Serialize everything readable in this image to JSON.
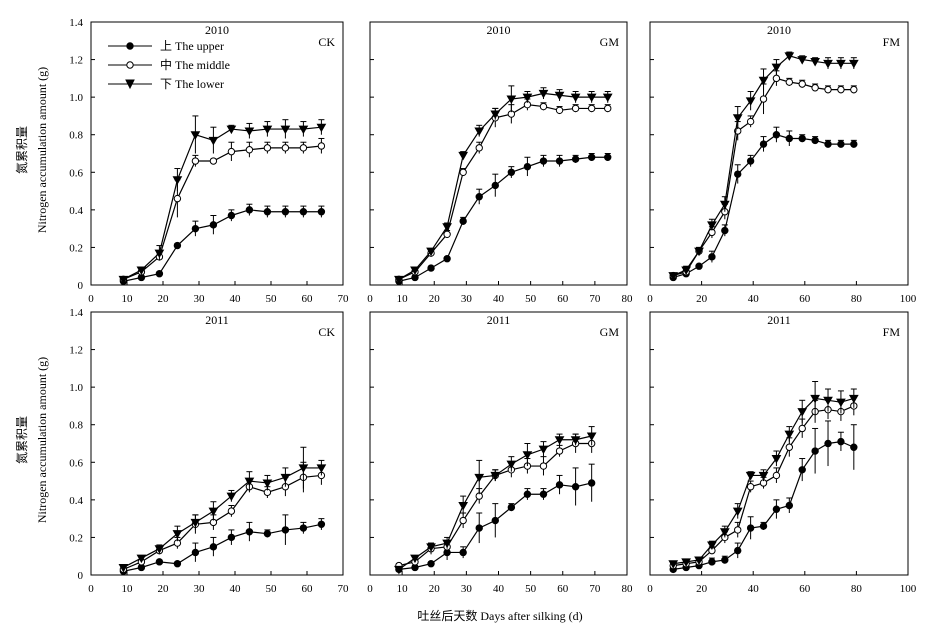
{
  "figure": {
    "xlabel": "吐丝后天数 Days after silking (d)",
    "ylabel_cn": "氮累积量",
    "ylabel_en": "Nitrogen accumulation amount (g)"
  },
  "legend": [
    {
      "label": "上 The upper",
      "marker": "filled-circle"
    },
    {
      "label": "中 The middle",
      "marker": "open-circle"
    },
    {
      "label": "下 The lower",
      "marker": "filled-triangle-down"
    }
  ],
  "chart_data": [
    {
      "type": "line",
      "year": "2010",
      "treatment": "CK",
      "xlim": [
        0,
        70
      ],
      "ylim": [
        0,
        1.4
      ],
      "xticks": [
        "0",
        "10",
        "20",
        "30",
        "40",
        "50",
        "60",
        "70"
      ],
      "yticks": [
        "0",
        "0.2",
        "0.4",
        "0.6",
        "0.8",
        "1.0",
        "1.2",
        "1.4"
      ],
      "x": [
        9,
        14,
        19,
        24,
        29,
        34,
        39,
        44,
        49,
        54,
        59,
        64
      ],
      "series": [
        {
          "name": "上 The upper",
          "values": [
            0.02,
            0.04,
            0.06,
            0.21,
            0.3,
            0.32,
            0.37,
            0.4,
            0.39,
            0.39,
            0.39,
            0.39
          ],
          "errors": [
            0.01,
            0.01,
            0.01,
            0.01,
            0.04,
            0.05,
            0.03,
            0.03,
            0.03,
            0.03,
            0.03,
            0.03
          ]
        },
        {
          "name": "中 The middle",
          "values": [
            0.03,
            0.07,
            0.15,
            0.46,
            0.66,
            0.66,
            0.71,
            0.72,
            0.73,
            0.73,
            0.73,
            0.74
          ],
          "errors": [
            0.01,
            0.01,
            0.02,
            0.1,
            0.03,
            0.01,
            0.05,
            0.04,
            0.03,
            0.03,
            0.03,
            0.04
          ]
        },
        {
          "name": "下 The lower",
          "values": [
            0.03,
            0.08,
            0.17,
            0.56,
            0.8,
            0.77,
            0.83,
            0.82,
            0.83,
            0.83,
            0.83,
            0.84
          ],
          "errors": [
            0.01,
            0.01,
            0.04,
            0.06,
            0.1,
            0.07,
            0.02,
            0.04,
            0.04,
            0.05,
            0.04,
            0.04
          ]
        }
      ]
    },
    {
      "type": "line",
      "year": "2010",
      "treatment": "GM",
      "xlim": [
        0,
        80
      ],
      "ylim": [
        0,
        1.4
      ],
      "xticks": [
        "0",
        "10",
        "20",
        "30",
        "40",
        "50",
        "60",
        "70",
        "80"
      ],
      "yticks": [],
      "x": [
        9,
        14,
        19,
        24,
        29,
        34,
        39,
        44,
        49,
        54,
        59,
        64,
        69,
        74
      ],
      "series": [
        {
          "name": "上 The upper",
          "values": [
            0.02,
            0.04,
            0.09,
            0.14,
            0.34,
            0.47,
            0.53,
            0.6,
            0.63,
            0.66,
            0.66,
            0.67,
            0.68,
            0.68
          ],
          "errors": [
            0.01,
            0.01,
            0.01,
            0.01,
            0.02,
            0.04,
            0.06,
            0.03,
            0.05,
            0.03,
            0.03,
            0.02,
            0.02,
            0.02
          ]
        },
        {
          "name": "中 The middle",
          "values": [
            0.03,
            0.07,
            0.17,
            0.27,
            0.6,
            0.73,
            0.89,
            0.91,
            0.96,
            0.95,
            0.93,
            0.94,
            0.94,
            0.94
          ],
          "errors": [
            0.01,
            0.01,
            0.02,
            0.02,
            0.02,
            0.03,
            0.05,
            0.05,
            0.03,
            0.02,
            0.02,
            0.02,
            0.02,
            0.02
          ]
        },
        {
          "name": "下 The lower",
          "values": [
            0.03,
            0.08,
            0.18,
            0.31,
            0.69,
            0.82,
            0.91,
            0.99,
            1.0,
            1.02,
            1.01,
            1.0,
            1.0,
            1.0
          ],
          "errors": [
            0.01,
            0.01,
            0.01,
            0.02,
            0.02,
            0.03,
            0.03,
            0.07,
            0.03,
            0.03,
            0.03,
            0.03,
            0.03,
            0.03
          ]
        }
      ]
    },
    {
      "type": "line",
      "year": "2010",
      "treatment": "FM",
      "xlim": [
        0,
        100
      ],
      "ylim": [
        0,
        1.4
      ],
      "xticks": [
        "0",
        "20",
        "40",
        "60",
        "80",
        "100"
      ],
      "yticks": [],
      "x": [
        9,
        14,
        19,
        24,
        29,
        34,
        39,
        44,
        49,
        54,
        59,
        64,
        69,
        74,
        79
      ],
      "series": [
        {
          "name": "上 The upper",
          "values": [
            0.04,
            0.06,
            0.1,
            0.15,
            0.29,
            0.59,
            0.66,
            0.75,
            0.8,
            0.78,
            0.78,
            0.77,
            0.75,
            0.75,
            0.75
          ],
          "errors": [
            0.01,
            0.01,
            0.01,
            0.03,
            0.03,
            0.05,
            0.03,
            0.04,
            0.04,
            0.04,
            0.02,
            0.02,
            0.02,
            0.02,
            0.02
          ]
        },
        {
          "name": "中 The middle",
          "values": [
            0.05,
            0.07,
            0.18,
            0.28,
            0.39,
            0.82,
            0.87,
            0.99,
            1.1,
            1.08,
            1.07,
            1.05,
            1.04,
            1.04,
            1.04
          ],
          "errors": [
            0.01,
            0.02,
            0.02,
            0.03,
            0.04,
            0.05,
            0.03,
            0.08,
            0.04,
            0.02,
            0.02,
            0.02,
            0.02,
            0.02,
            0.02
          ]
        },
        {
          "name": "下 The lower",
          "values": [
            0.05,
            0.08,
            0.18,
            0.32,
            0.43,
            0.89,
            0.98,
            1.09,
            1.16,
            1.22,
            1.2,
            1.19,
            1.18,
            1.18,
            1.18
          ],
          "errors": [
            0.01,
            0.02,
            0.02,
            0.03,
            0.04,
            0.06,
            0.05,
            0.06,
            0.04,
            0.02,
            0.02,
            0.02,
            0.03,
            0.03,
            0.03
          ]
        }
      ]
    },
    {
      "type": "line",
      "year": "2011",
      "treatment": "CK",
      "xlim": [
        0,
        70
      ],
      "ylim": [
        0,
        1.4
      ],
      "xticks": [
        "0",
        "10",
        "20",
        "30",
        "40",
        "50",
        "60",
        "70"
      ],
      "yticks": [
        "0",
        "0.2",
        "0.4",
        "0.6",
        "0.8",
        "1.0",
        "1.2",
        "1.4"
      ],
      "x": [
        9,
        14,
        19,
        24,
        29,
        34,
        39,
        44,
        49,
        54,
        59,
        64
      ],
      "series": [
        {
          "name": "上 The upper",
          "values": [
            0.02,
            0.04,
            0.07,
            0.06,
            0.12,
            0.15,
            0.2,
            0.23,
            0.22,
            0.24,
            0.25,
            0.27
          ],
          "errors": [
            0.01,
            0.01,
            0.01,
            0.01,
            0.05,
            0.05,
            0.04,
            0.05,
            0.02,
            0.08,
            0.03,
            0.03
          ]
        },
        {
          "name": "中 The middle",
          "values": [
            0.03,
            0.07,
            0.13,
            0.17,
            0.27,
            0.28,
            0.34,
            0.47,
            0.44,
            0.47,
            0.52,
            0.53
          ],
          "errors": [
            0.01,
            0.01,
            0.02,
            0.03,
            0.05,
            0.04,
            0.03,
            0.03,
            0.03,
            0.05,
            0.08,
            0.05
          ]
        },
        {
          "name": "下 The lower",
          "values": [
            0.04,
            0.09,
            0.14,
            0.22,
            0.28,
            0.34,
            0.42,
            0.5,
            0.49,
            0.52,
            0.57,
            0.57
          ],
          "errors": [
            0.01,
            0.01,
            0.02,
            0.04,
            0.04,
            0.05,
            0.03,
            0.05,
            0.04,
            0.05,
            0.11,
            0.04
          ]
        }
      ]
    },
    {
      "type": "line",
      "year": "2011",
      "treatment": "GM",
      "xlim": [
        0,
        80
      ],
      "ylim": [
        0,
        1.4
      ],
      "xticks": [
        "0",
        "10",
        "20",
        "30",
        "40",
        "50",
        "60",
        "70",
        "80"
      ],
      "yticks": [],
      "x": [
        9,
        14,
        19,
        24,
        29,
        34,
        39,
        44,
        49,
        54,
        59,
        64,
        69
      ],
      "series": [
        {
          "name": "上 The upper",
          "values": [
            0.03,
            0.04,
            0.06,
            0.12,
            0.12,
            0.25,
            0.29,
            0.36,
            0.43,
            0.43,
            0.48,
            0.47,
            0.49
          ],
          "errors": [
            0.01,
            0.01,
            0.01,
            0.04,
            0.03,
            0.08,
            0.09,
            0.02,
            0.03,
            0.03,
            0.05,
            0.1,
            0.1
          ]
        },
        {
          "name": "中 The middle",
          "values": [
            0.05,
            0.07,
            0.14,
            0.15,
            0.29,
            0.42,
            0.53,
            0.56,
            0.58,
            0.58,
            0.66,
            0.7,
            0.7
          ],
          "errors": [
            0.01,
            0.01,
            0.03,
            0.02,
            0.04,
            0.04,
            0.03,
            0.04,
            0.04,
            0.05,
            0.03,
            0.05,
            0.05
          ]
        },
        {
          "name": "下 The lower",
          "values": [
            0.03,
            0.09,
            0.15,
            0.17,
            0.37,
            0.52,
            0.53,
            0.59,
            0.64,
            0.67,
            0.72,
            0.72,
            0.74
          ],
          "errors": [
            0.01,
            0.01,
            0.02,
            0.03,
            0.05,
            0.09,
            0.03,
            0.04,
            0.06,
            0.04,
            0.03,
            0.03,
            0.05
          ]
        }
      ]
    },
    {
      "type": "line",
      "year": "2011",
      "treatment": "FM",
      "xlim": [
        0,
        100
      ],
      "ylim": [
        0,
        1.4
      ],
      "xticks": [
        "0",
        "20",
        "40",
        "60",
        "80",
        "100"
      ],
      "yticks": [],
      "x": [
        9,
        14,
        19,
        24,
        29,
        34,
        39,
        44,
        49,
        54,
        59,
        64,
        69,
        74,
        79
      ],
      "series": [
        {
          "name": "上 The upper",
          "values": [
            0.03,
            0.04,
            0.05,
            0.07,
            0.08,
            0.13,
            0.25,
            0.26,
            0.35,
            0.37,
            0.56,
            0.66,
            0.7,
            0.71,
            0.68
          ],
          "errors": [
            0.01,
            0.01,
            0.01,
            0.02,
            0.02,
            0.04,
            0.06,
            0.02,
            0.05,
            0.04,
            0.06,
            0.12,
            0.12,
            0.05,
            0.12
          ]
        },
        {
          "name": "中 The middle",
          "values": [
            0.05,
            0.06,
            0.07,
            0.13,
            0.2,
            0.24,
            0.47,
            0.49,
            0.53,
            0.68,
            0.78,
            0.87,
            0.88,
            0.87,
            0.9
          ],
          "errors": [
            0.01,
            0.01,
            0.01,
            0.02,
            0.03,
            0.04,
            0.03,
            0.03,
            0.04,
            0.05,
            0.05,
            0.06,
            0.05,
            0.05,
            0.05
          ]
        },
        {
          "name": "下 The lower",
          "values": [
            0.06,
            0.07,
            0.08,
            0.16,
            0.23,
            0.34,
            0.53,
            0.53,
            0.62,
            0.75,
            0.87,
            0.94,
            0.93,
            0.92,
            0.94
          ],
          "errors": [
            0.01,
            0.01,
            0.01,
            0.02,
            0.03,
            0.04,
            0.02,
            0.03,
            0.04,
            0.04,
            0.06,
            0.09,
            0.06,
            0.06,
            0.05
          ]
        }
      ]
    }
  ]
}
